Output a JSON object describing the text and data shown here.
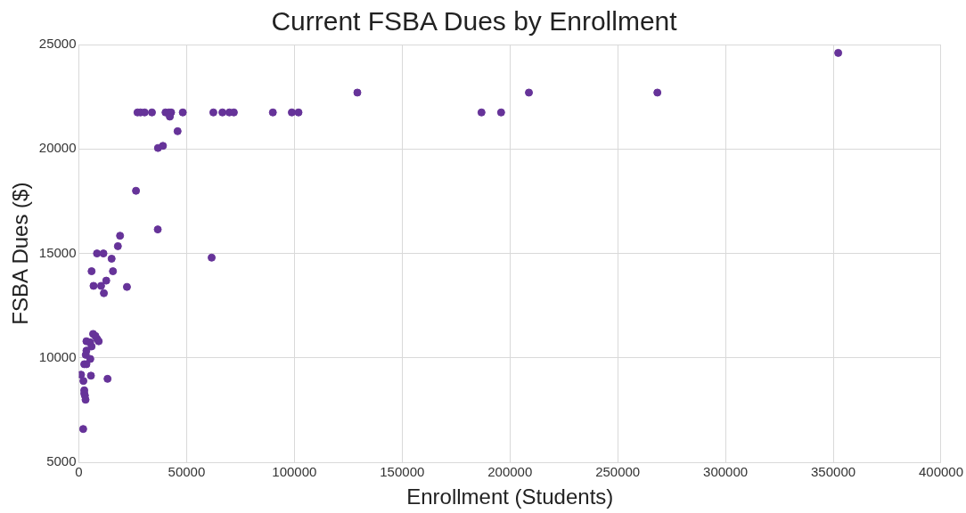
{
  "chart_data": {
    "type": "scatter",
    "title": "Current FSBA Dues by Enrollment",
    "xlabel": "Enrollment (Students)",
    "ylabel": "FSBA Dues ($)",
    "x": [
      27200,
      28600,
      30500,
      33900,
      40200,
      41900,
      42800,
      48200,
      62400,
      66600,
      69800,
      71900,
      90000,
      98800,
      101900,
      42200,
      45800,
      36700,
      39000,
      129200,
      186800,
      195900,
      208800,
      268400,
      352300,
      26500,
      36600,
      19100,
      18100,
      8400,
      11400,
      15200,
      61600,
      5900,
      15800,
      12700,
      6800,
      10300,
      22300,
      11600,
      6600,
      7700,
      8500,
      9200,
      3500,
      5200,
      5900,
      3500,
      3200,
      5300,
      3500,
      2500,
      1000,
      5600,
      13300,
      2100,
      2500,
      2500,
      2800,
      3100,
      2000
    ],
    "values": [
      21750,
      21750,
      21750,
      21750,
      21750,
      21750,
      21750,
      21750,
      21750,
      21750,
      21750,
      21750,
      21750,
      21750,
      21750,
      21550,
      20850,
      20050,
      20150,
      22700,
      21750,
      21750,
      22700,
      22700,
      24600,
      18000,
      16150,
      15850,
      15350,
      15000,
      15000,
      14750,
      14800,
      14150,
      14150,
      13700,
      13450,
      13450,
      13400,
      13100,
      11150,
      11050,
      10900,
      10800,
      10800,
      10750,
      10550,
      10350,
      10150,
      9950,
      9700,
      9700,
      9200,
      9150,
      9000,
      8900,
      8450,
      8300,
      8200,
      8000,
      6600
    ],
    "color": "#663399",
    "marker": "circle",
    "xlim": [
      0,
      400000
    ],
    "xticks": [
      0,
      50000,
      100000,
      150000,
      200000,
      250000,
      300000,
      350000,
      400000
    ],
    "ylim": [
      5000,
      25000
    ],
    "yticks": [
      5000,
      10000,
      15000,
      20000,
      25000
    ],
    "grid": true,
    "legend": false
  }
}
